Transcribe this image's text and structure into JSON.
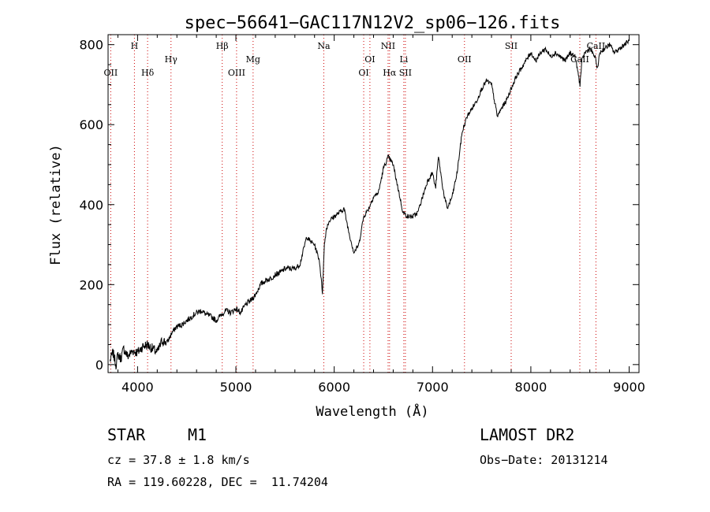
{
  "chart_data": {
    "type": "line",
    "title": "spec−56641−GAC117N12V2_sp06−126.fits",
    "xlabel": "Wavelength (Å)",
    "ylabel": "Flux (relative)",
    "xlim": [
      3700,
      9100
    ],
    "ylim": [
      -20,
      825
    ],
    "xticks": [
      4000,
      5000,
      6000,
      7000,
      8000,
      9000
    ],
    "xtick_labels": [
      "4000",
      "5000",
      "6000",
      "7000",
      "8000",
      "9000"
    ],
    "yticks": [
      0,
      200,
      400,
      600,
      800
    ],
    "ytick_labels": [
      "0",
      "200",
      "400",
      "600",
      "800"
    ],
    "line_color": "#000000",
    "marker_color": "#cc0000",
    "lines": [
      {
        "label": "OII",
        "wave": 3727,
        "row": 2
      },
      {
        "label": "H",
        "wave": 3968,
        "row": 0
      },
      {
        "label": "Hδ",
        "wave": 4102,
        "row": 2
      },
      {
        "label": "Hγ",
        "wave": 4340,
        "row": 1
      },
      {
        "label": "Hβ",
        "wave": 4861,
        "row": 0
      },
      {
        "label": "OIII",
        "wave": 5007,
        "row": 2
      },
      {
        "label": "Mg",
        "wave": 5175,
        "row": 1
      },
      {
        "label": "Na",
        "wave": 5894,
        "row": 0
      },
      {
        "label": "OI",
        "wave": 6300,
        "row": 2
      },
      {
        "label": "OI",
        "wave": 6363,
        "row": 1
      },
      {
        "label": "NII",
        "wave": 6548,
        "row": 0
      },
      {
        "label": "Hα",
        "wave": 6563,
        "row": 2
      },
      {
        "label": "Li",
        "wave": 6708,
        "row": 1
      },
      {
        "label": "SII",
        "wave": 6724,
        "row": 2
      },
      {
        "label": "OII",
        "wave": 7325,
        "row": 1
      },
      {
        "label": "SII",
        "wave": 7800,
        "row": 0
      },
      {
        "label": "CaII",
        "wave": 8498,
        "row": 1
      },
      {
        "label": "CaII",
        "wave": 8662,
        "row": 0
      }
    ],
    "series": [
      {
        "name": "spectrum",
        "x": [
          3720,
          3750,
          3780,
          3800,
          3830,
          3860,
          3900,
          3950,
          4000,
          4050,
          4100,
          4150,
          4200,
          4250,
          4300,
          4350,
          4400,
          4450,
          4500,
          4550,
          4600,
          4650,
          4700,
          4750,
          4800,
          4850,
          4900,
          4950,
          5000,
          5050,
          5100,
          5150,
          5200,
          5250,
          5300,
          5350,
          5400,
          5450,
          5500,
          5550,
          5600,
          5650,
          5700,
          5720,
          5750,
          5800,
          5850,
          5880,
          5900,
          5920,
          5950,
          6000,
          6050,
          6100,
          6150,
          6200,
          6250,
          6300,
          6350,
          6400,
          6450,
          6500,
          6550,
          6600,
          6650,
          6700,
          6750,
          6800,
          6850,
          6900,
          6950,
          7000,
          7030,
          7060,
          7100,
          7120,
          7150,
          7200,
          7250,
          7300,
          7350,
          7400,
          7450,
          7500,
          7550,
          7600,
          7630,
          7660,
          7700,
          7750,
          7800,
          7850,
          7900,
          7950,
          8000,
          8050,
          8100,
          8150,
          8200,
          8250,
          8300,
          8350,
          8400,
          8450,
          8480,
          8500,
          8520,
          8550,
          8600,
          8650,
          8680,
          8700,
          8750,
          8800,
          8850,
          8900,
          8950,
          9000
        ],
        "values": [
          10,
          30,
          0,
          25,
          15,
          40,
          20,
          35,
          30,
          45,
          50,
          40,
          30,
          60,
          55,
          80,
          95,
          100,
          110,
          120,
          130,
          135,
          125,
          120,
          110,
          125,
          135,
          130,
          140,
          130,
          150,
          160,
          175,
          200,
          210,
          215,
          225,
          230,
          240,
          240,
          240,
          250,
          300,
          320,
          310,
          300,
          260,
          180,
          300,
          340,
          360,
          370,
          380,
          390,
          330,
          280,
          300,
          370,
          390,
          420,
          430,
          490,
          520,
          500,
          440,
          380,
          370,
          370,
          380,
          420,
          460,
          480,
          440,
          520,
          450,
          420,
          390,
          420,
          480,
          580,
          620,
          640,
          660,
          690,
          710,
          700,
          660,
          620,
          640,
          660,
          690,
          720,
          740,
          760,
          780,
          760,
          780,
          790,
          770,
          780,
          770,
          760,
          780,
          770,
          730,
          700,
          760,
          780,
          790,
          770,
          740,
          780,
          790,
          800,
          780,
          790,
          800,
          810
        ]
      }
    ]
  },
  "info": {
    "left_class": "STAR",
    "left_subclass": "M1",
    "survey": "LAMOST DR2",
    "cz": "cz = 37.8 ± 1.8 km/s",
    "obs_date": "Obs−Date: 20131214",
    "radec": "RA = 119.60228, DEC =  11.74204"
  }
}
